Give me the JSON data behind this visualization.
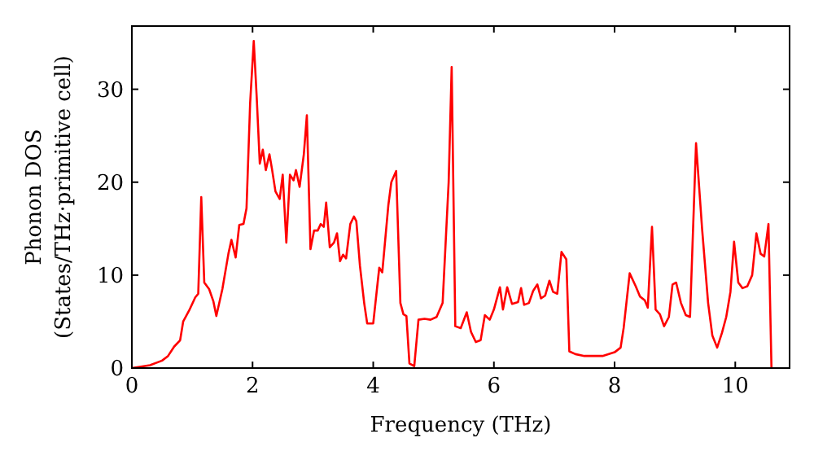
{
  "chart_data": {
    "type": "line",
    "xlabel": "Frequency (THz)",
    "ylabel": "Phonon DOS\n(States/THz·primitive cell)",
    "xlim": [
      0,
      10.9
    ],
    "ylim": [
      0,
      36.8
    ],
    "xticks": [
      0,
      2,
      4,
      6,
      8,
      10
    ],
    "yticks": [
      0,
      10,
      20,
      30
    ],
    "grid": false,
    "line_style": "solid",
    "series": [
      {
        "color": "#ff0000",
        "x": [
          0,
          0.3,
          0.5,
          0.6,
          0.7,
          0.8,
          0.85,
          0.95,
          1.05,
          1.1,
          1.15,
          1.2,
          1.28,
          1.35,
          1.4,
          1.5,
          1.6,
          1.65,
          1.72,
          1.78,
          1.85,
          1.9,
          1.96,
          2.02,
          2.07,
          2.12,
          2.17,
          2.22,
          2.28,
          2.32,
          2.38,
          2.45,
          2.5,
          2.56,
          2.62,
          2.68,
          2.72,
          2.78,
          2.85,
          2.9,
          2.96,
          3.02,
          3.08,
          3.13,
          3.18,
          3.22,
          3.28,
          3.35,
          3.4,
          3.45,
          3.5,
          3.55,
          3.62,
          3.68,
          3.72,
          3.78,
          3.85,
          3.9,
          4.0,
          4.1,
          4.15,
          4.25,
          4.3,
          4.38,
          4.45,
          4.5,
          4.55,
          4.6,
          4.68,
          4.75,
          4.85,
          4.95,
          5.05,
          5.15,
          5.25,
          5.3,
          5.36,
          5.45,
          5.55,
          5.62,
          5.7,
          5.78,
          5.85,
          5.93,
          6.0,
          6.1,
          6.15,
          6.22,
          6.3,
          6.4,
          6.45,
          6.5,
          6.58,
          6.65,
          6.72,
          6.78,
          6.85,
          6.92,
          6.98,
          7.05,
          7.12,
          7.2,
          7.25,
          7.35,
          7.5,
          7.8,
          8.0,
          8.1,
          8.15,
          8.25,
          8.35,
          8.42,
          8.5,
          8.55,
          8.62,
          8.68,
          8.75,
          8.82,
          8.9,
          8.96,
          9.02,
          9.1,
          9.18,
          9.25,
          9.35,
          9.45,
          9.55,
          9.62,
          9.7,
          9.78,
          9.85,
          9.92,
          9.98,
          10.05,
          10.12,
          10.2,
          10.28,
          10.35,
          10.42,
          10.48,
          10.55,
          10.6
        ],
        "values": [
          0,
          0.3,
          0.8,
          1.3,
          2.3,
          3.0,
          5.0,
          6.2,
          7.6,
          8.0,
          18.4,
          9.2,
          8.5,
          7.2,
          5.6,
          8.5,
          12.3,
          13.8,
          11.9,
          15.4,
          15.5,
          17.2,
          28.5,
          35.2,
          29,
          22,
          23.5,
          21.3,
          23,
          21.5,
          19,
          18.2,
          20.8,
          13.5,
          20.8,
          20.2,
          21.3,
          19.5,
          23,
          27.2,
          12.8,
          14.8,
          14.8,
          15.5,
          15.2,
          17.8,
          13.0,
          13.5,
          14.5,
          11.5,
          12.2,
          11.8,
          15.5,
          16.3,
          15.8,
          11,
          7,
          4.8,
          4.8,
          10.8,
          10.3,
          17.5,
          20,
          21.2,
          7.0,
          5.8,
          5.6,
          0.5,
          0.2,
          5.2,
          5.3,
          5.2,
          5.5,
          7,
          20,
          32.4,
          4.5,
          4.3,
          6.0,
          3.9,
          2.8,
          3.0,
          5.7,
          5.2,
          6.3,
          8.7,
          6.3,
          8.7,
          6.9,
          7.1,
          8.6,
          6.8,
          7.0,
          8.3,
          9.0,
          7.5,
          7.8,
          9.4,
          8.2,
          8.0,
          12.5,
          11.7,
          1.8,
          1.5,
          1.3,
          1.3,
          1.7,
          2.2,
          4.3,
          10.2,
          8.8,
          7.7,
          7.3,
          6.5,
          15.2,
          6.3,
          5.8,
          4.5,
          5.5,
          9.0,
          9.2,
          7.0,
          5.7,
          5.5,
          24.2,
          15,
          7,
          3.5,
          2.2,
          3.8,
          5.5,
          8.2,
          13.6,
          9.2,
          8.6,
          8.8,
          10,
          14.5,
          12.3,
          12.0,
          15.5,
          0
        ]
      }
    ]
  }
}
